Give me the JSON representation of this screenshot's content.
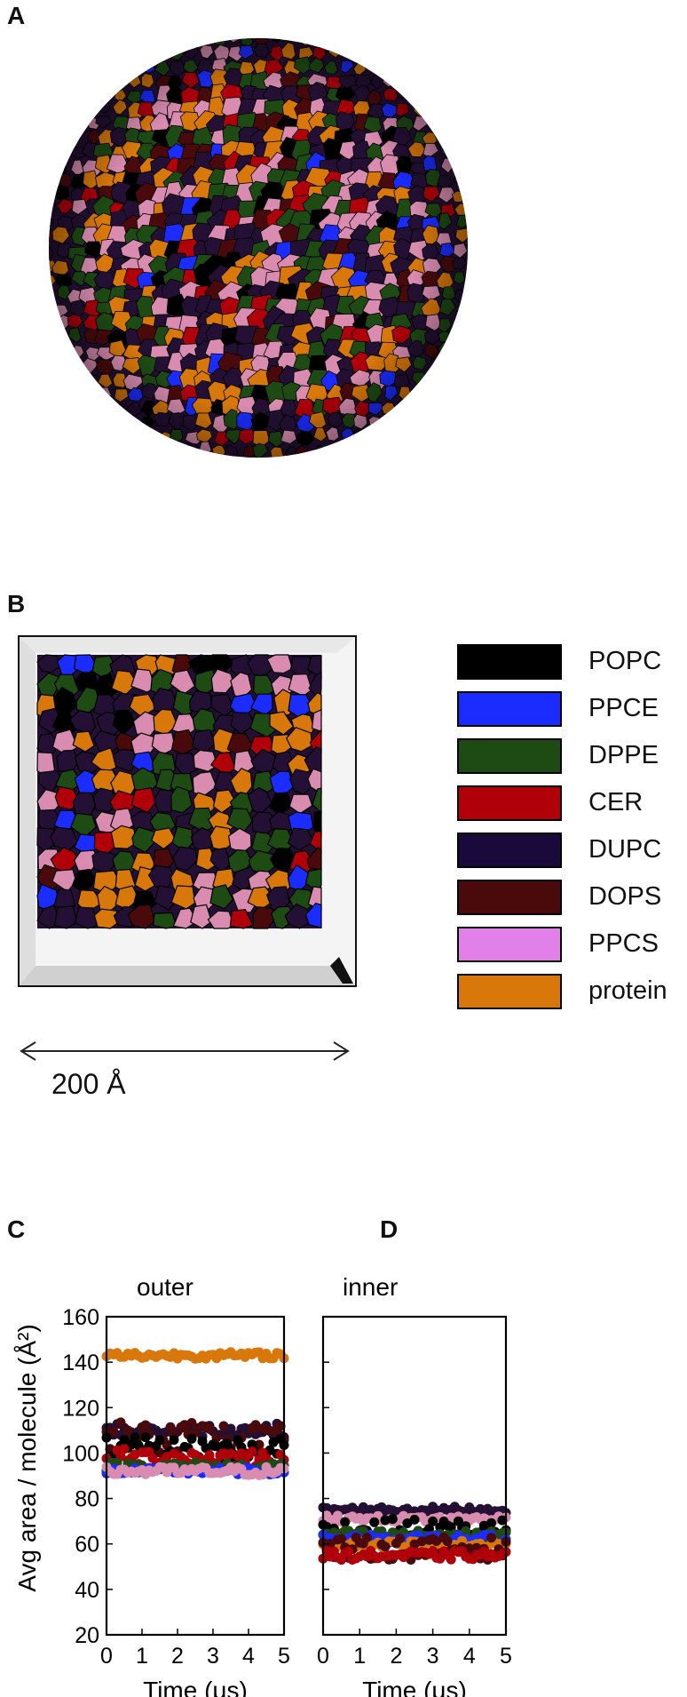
{
  "panels": {
    "a": "A",
    "b": "B",
    "c": "C",
    "d": "D"
  },
  "colors": {
    "POPC": "#000000",
    "PPCE": "#1a2cff",
    "DPPE": "#1e4a14",
    "CER": "#b0000a",
    "DUPC": "#241034",
    "DOPS": "#4a0a0c",
    "PPCS": "#d98cb0",
    "protein": "#d9780a"
  },
  "legend": {
    "items": [
      {
        "label": "POPC",
        "color": "#000000"
      },
      {
        "label": "PPCE",
        "color": "#1a2cff"
      },
      {
        "label": "DPPE",
        "color": "#1e4a14"
      },
      {
        "label": "CER",
        "color": "#b0000a"
      },
      {
        "label": "DUPC",
        "color": "#1a0a3c"
      },
      {
        "label": "DOPS",
        "color": "#4a0a0c"
      },
      {
        "label": "PPCS",
        "color": "#e080e8"
      },
      {
        "label": "protein",
        "color": "#d9780a"
      }
    ]
  },
  "scale_bar": {
    "label": "200 Å"
  },
  "chart_data": [
    {
      "type": "scatter",
      "panel": "C",
      "title": "outer",
      "xlabel": "Time (μs)",
      "ylabel": "Avg area / molecule (Å²)",
      "xlim": [
        0,
        5
      ],
      "ylim": [
        20,
        160
      ],
      "x_ticks": [
        "0",
        "1",
        "2",
        "3",
        "4",
        "5"
      ],
      "y_ticks": [
        "20",
        "40",
        "60",
        "80",
        "100",
        "120",
        "140",
        "160"
      ],
      "series": [
        {
          "color": "#d9780a",
          "mean": 143,
          "spread": 1.5
        },
        {
          "color": "#241034",
          "mean": 110,
          "spread": 3
        },
        {
          "color": "#4a0a0c",
          "mean": 106,
          "spread": 8
        },
        {
          "color": "#000000",
          "mean": 101,
          "spread": 6
        },
        {
          "color": "#b0000a",
          "mean": 98,
          "spread": 4
        },
        {
          "color": "#1e4a14",
          "mean": 94,
          "spread": 2
        },
        {
          "color": "#1a2cff",
          "mean": 92,
          "spread": 1.5
        },
        {
          "color": "#d98cb0",
          "mean": 92,
          "spread": 2
        }
      ]
    },
    {
      "type": "scatter",
      "panel": "D",
      "title": "inner",
      "xlabel": "Time (μs)",
      "xlim": [
        0,
        5
      ],
      "ylim": [
        20,
        160
      ],
      "x_ticks": [
        "0",
        "1",
        "2",
        "3",
        "4",
        "5"
      ],
      "series": [
        {
          "color": "#241034",
          "mean": 75,
          "spread": 1.5
        },
        {
          "color": "#d98cb0",
          "mean": 71,
          "spread": 1.5
        },
        {
          "color": "#000000",
          "mean": 66,
          "spread": 5
        },
        {
          "color": "#1e4a14",
          "mean": 64,
          "spread": 2
        },
        {
          "color": "#1a2cff",
          "mean": 62,
          "spread": 2
        },
        {
          "color": "#d9780a",
          "mean": 60,
          "spread": 1.5
        },
        {
          "color": "#4a0a0c",
          "mean": 58,
          "spread": 5
        },
        {
          "color": "#b0000a",
          "mean": 55,
          "spread": 2
        }
      ]
    }
  ]
}
